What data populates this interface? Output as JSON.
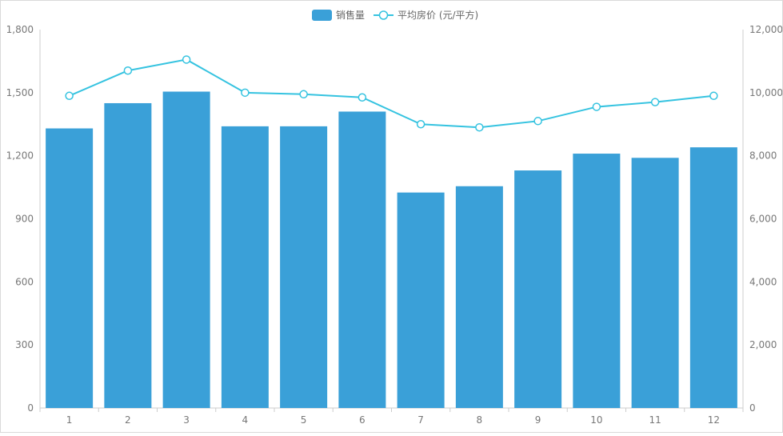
{
  "chart_data": {
    "type": "bar",
    "categories": [
      "1",
      "2",
      "3",
      "4",
      "5",
      "6",
      "7",
      "8",
      "9",
      "10",
      "11",
      "12"
    ],
    "series": [
      {
        "name": "销售量",
        "type": "bar",
        "axis": "left",
        "color": "#3aa0d8",
        "values": [
          1330,
          1450,
          1505,
          1340,
          1340,
          1410,
          1025,
          1055,
          1130,
          1210,
          1190,
          1240
        ]
      },
      {
        "name": "平均房价 (元/平方)",
        "type": "line",
        "axis": "right",
        "color": "#35c3e0",
        "values": [
          9900,
          10700,
          11050,
          10000,
          9950,
          9850,
          9000,
          8900,
          9100,
          9550,
          9700,
          9900
        ]
      }
    ],
    "left_axis": {
      "min": 0,
      "max": 1800,
      "ticks": [
        "0",
        "300",
        "600",
        "900",
        "1,200",
        "1,500",
        "1,800"
      ]
    },
    "right_axis": {
      "min": 0,
      "max": 12000,
      "ticks": [
        "0",
        "2,000",
        "4,000",
        "6,000",
        "8,000",
        "10,000",
        "12,000"
      ]
    },
    "legend_position": "top-center",
    "grid": false
  }
}
